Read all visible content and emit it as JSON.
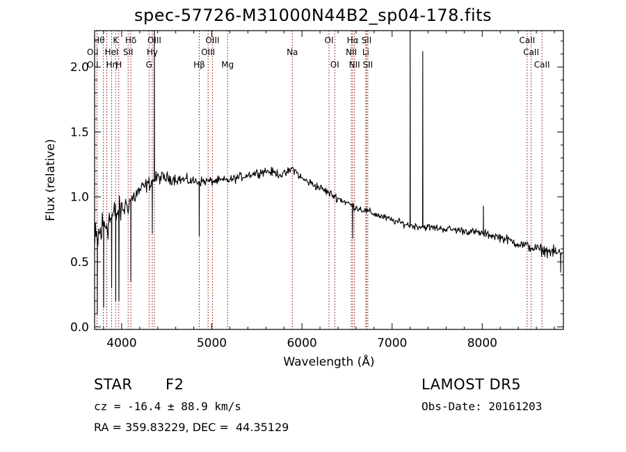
{
  "title": "spec-57726-M31000N44B2_sp04-178.fits",
  "info": {
    "object_class": "STAR",
    "subclass": "F2",
    "survey": "LAMOST DR5",
    "cz": "cz = -16.4 ± 88.9 km/s",
    "obs_date": "Obs-Date: 20161203",
    "coords": "RA = 359.83229, DEC =  44.35129"
  },
  "colors": {
    "spectrum": "#000000",
    "line_markers": "#8b0000",
    "axes": "#000000"
  },
  "chart_data": {
    "type": "line",
    "xlabel": "Wavelength (Å)",
    "ylabel": "Flux (relative)",
    "xlim": [
      3700,
      8900
    ],
    "ylim": [
      -0.02,
      2.28
    ],
    "xticks": [
      4000,
      5000,
      6000,
      7000,
      8000
    ],
    "xtick_labels": [
      "4000",
      "5000",
      "6000",
      "7000",
      "8000"
    ],
    "yticks": [
      0.0,
      0.5,
      1.0,
      1.5,
      2.0
    ],
    "ytick_labels": [
      "0.0",
      "0.5",
      "1.0",
      "1.5",
      "2.0"
    ],
    "grid": false,
    "continuum": {
      "x": [
        3700,
        3800,
        3900,
        4000,
        4100,
        4200,
        4300,
        4400,
        4600,
        4800,
        5000,
        5200,
        5400,
        5600,
        5800,
        5900,
        6000,
        6200,
        6400,
        6600,
        6800,
        7000,
        7200,
        7500,
        7800,
        8000,
        8200,
        8400,
        8600,
        8900
      ],
      "y": [
        0.62,
        0.78,
        0.85,
        0.9,
        0.97,
        1.05,
        1.1,
        1.15,
        1.14,
        1.12,
        1.12,
        1.13,
        1.17,
        1.2,
        1.17,
        1.22,
        1.14,
        1.07,
        0.99,
        0.92,
        0.87,
        0.82,
        0.78,
        0.76,
        0.74,
        0.72,
        0.69,
        0.64,
        0.6,
        0.56
      ]
    },
    "features": [
      {
        "x": 3730,
        "y": 0.1
      },
      {
        "x": 3800,
        "y": 0.15
      },
      {
        "x": 3889,
        "y": 0.3
      },
      {
        "x": 3934,
        "y": 0.2
      },
      {
        "x": 3970,
        "y": 0.2
      },
      {
        "x": 4102,
        "y": 0.35
      },
      {
        "x": 4340,
        "y": 0.72
      },
      {
        "x": 4363,
        "y": 2.28
      },
      {
        "x": 4861,
        "y": 0.7
      },
      {
        "x": 6563,
        "y": 0.68
      },
      {
        "x": 7200,
        "y": 2.28
      },
      {
        "x": 7340,
        "y": 2.12
      },
      {
        "x": 8013,
        "y": 0.93
      },
      {
        "x": 8870,
        "y": 0.42
      }
    ],
    "noise": {
      "x": [
        3700,
        4000,
        4300,
        5000,
        6000,
        7000,
        8000,
        8900
      ],
      "amplitude": [
        0.3,
        0.15,
        0.08,
        0.05,
        0.05,
        0.04,
        0.045,
        0.07
      ]
    },
    "line_markers": [
      {
        "label": "Hθ",
        "x": 3797,
        "row": 0,
        "anchor": "end"
      },
      {
        "label": "OII",
        "x": 3727,
        "row": 1,
        "anchor": "end"
      },
      {
        "label": "OII",
        "x": 3727,
        "row": 2,
        "anchor": "end"
      },
      {
        "label": "Hη",
        "x": 3835,
        "row": 2,
        "anchor": "start"
      },
      {
        "label": "HeI",
        "x": 3889,
        "row": 1,
        "anchor": "middle"
      },
      {
        "label": "K",
        "x": 3934,
        "row": 0,
        "anchor": "middle"
      },
      {
        "label": "H",
        "x": 3968,
        "row": 2,
        "anchor": "middle"
      },
      {
        "label": "Hδ",
        "x": 4102,
        "row": 0,
        "anchor": "middle"
      },
      {
        "label": "SII",
        "x": 4072,
        "row": 1,
        "anchor": "middle"
      },
      {
        "label": "OIII",
        "x": 4363,
        "row": 0,
        "anchor": "middle"
      },
      {
        "label": "Hγ",
        "x": 4340,
        "row": 1,
        "anchor": "middle"
      },
      {
        "label": "G",
        "x": 4304,
        "row": 2,
        "anchor": "middle"
      },
      {
        "label": "Hβ",
        "x": 4861,
        "row": 2,
        "anchor": "middle"
      },
      {
        "label": "OIII",
        "x": 5007,
        "row": 0,
        "anchor": "middle"
      },
      {
        "label": "OIII",
        "x": 4959,
        "row": 1,
        "anchor": "middle"
      },
      {
        "label": "Mg",
        "x": 5175,
        "row": 2,
        "anchor": "middle"
      },
      {
        "label": "Na",
        "x": 5893,
        "row": 1,
        "anchor": "middle"
      },
      {
        "label": "OI",
        "x": 6300,
        "row": 0,
        "anchor": "middle"
      },
      {
        "label": "OI",
        "x": 6364,
        "row": 2,
        "anchor": "middle"
      },
      {
        "label": "Hα",
        "x": 6563,
        "row": 0,
        "anchor": "middle"
      },
      {
        "label": "NII",
        "x": 6548,
        "row": 1,
        "anchor": "middle"
      },
      {
        "label": "NII",
        "x": 6583,
        "row": 2,
        "anchor": "middle"
      },
      {
        "label": "SII",
        "x": 6716,
        "row": 0,
        "anchor": "middle"
      },
      {
        "label": "Li",
        "x": 6708,
        "row": 1,
        "anchor": "middle"
      },
      {
        "label": "SII",
        "x": 6731,
        "row": 2,
        "anchor": "middle"
      },
      {
        "label": "CaII",
        "x": 8498,
        "row": 0,
        "anchor": "middle"
      },
      {
        "label": "CaII",
        "x": 8542,
        "row": 1,
        "anchor": "middle"
      },
      {
        "label": "CaII",
        "x": 8662,
        "row": 2,
        "anchor": "middle"
      }
    ]
  }
}
